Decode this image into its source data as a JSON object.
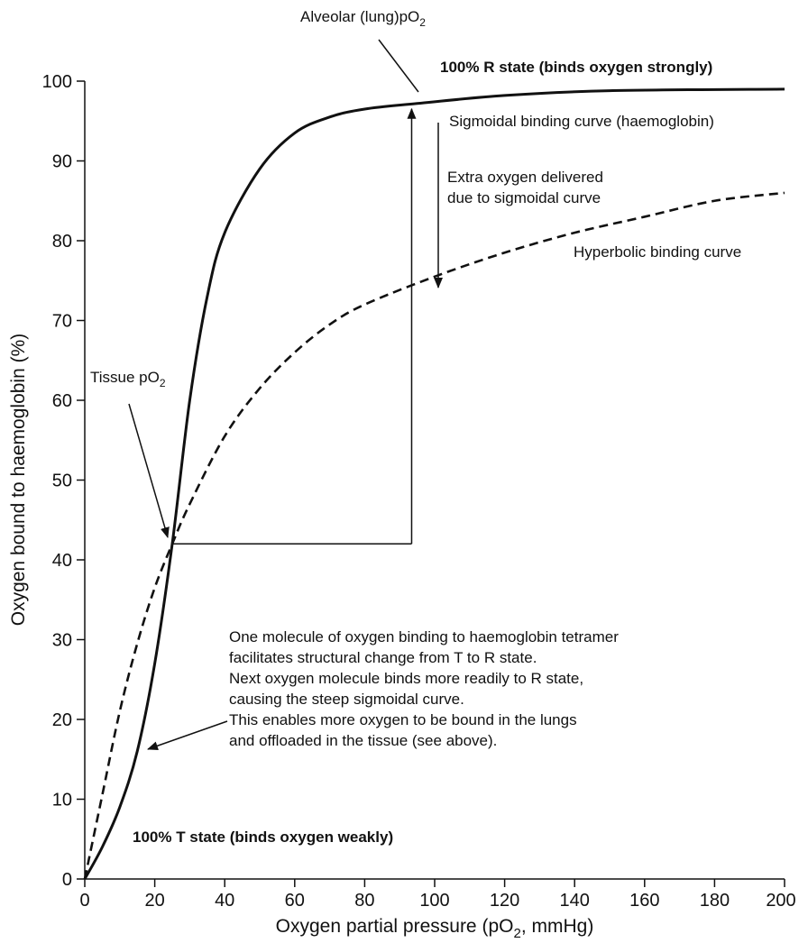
{
  "chart_data": {
    "type": "line",
    "xlabel_main": "Oxygen partial pressure (pO",
    "xlabel_sub": "2",
    "xlabel_tail": ", mmHg)",
    "ylabel": "Oxygen bound to haemoglobin (%)",
    "xlim": [
      0,
      200
    ],
    "ylim": [
      0,
      100
    ],
    "x_ticks": [
      "0",
      "20",
      "40",
      "60",
      "80",
      "100",
      "120",
      "140",
      "160",
      "180",
      "200"
    ],
    "y_ticks": [
      "0",
      "10",
      "20",
      "30",
      "40",
      "50",
      "60",
      "70",
      "80",
      "90",
      "100"
    ],
    "grid": false,
    "series": [
      {
        "name": "Sigmoidal binding curve (haemoglobin)",
        "style": "solid",
        "x": [
          0,
          5,
          10,
          15,
          20,
          25,
          30,
          35,
          40,
          50,
          60,
          70,
          80,
          95,
          120,
          150,
          200
        ],
        "y": [
          0,
          4,
          9,
          16,
          27,
          42,
          60,
          73,
          81,
          89,
          93.5,
          95.5,
          96.5,
          97.2,
          98.2,
          98.8,
          99
        ]
      },
      {
        "name": "Hyperbolic binding curve",
        "style": "dashed",
        "x": [
          0,
          5,
          10,
          15,
          20,
          25,
          30,
          40,
          50,
          60,
          70,
          80,
          100,
          120,
          140,
          160,
          180,
          200
        ],
        "y": [
          0,
          10.5,
          21,
          29.5,
          36.5,
          42,
          47,
          55.5,
          61.5,
          66,
          69.5,
          72,
          75.5,
          78.5,
          81,
          83,
          85,
          86
        ]
      }
    ],
    "annotations": {
      "alveolar_main": "Alveolar (lung)pO",
      "alveolar_sub": "2",
      "tissue_main": "Tissue pO",
      "tissue_sub": "2",
      "r_state": "100% R state (binds oxygen strongly)",
      "t_state": "100% T state (binds oxygen weakly)",
      "sigmoidal_label": "Sigmoidal binding curve (haemoglobin)",
      "extra_oxygen": [
        "Extra oxygen delivered",
        "due to sigmoidal curve"
      ],
      "hyperbolic_label": "Hyperbolic binding curve",
      "explanation": [
        "One molecule of oxygen binding to haemoglobin tetramer",
        "facilitates structural change from T to R state.",
        "Next oxygen molecule binds more readily to R state,",
        "causing the steep sigmoidal curve.",
        "This enables more oxygen to be bound in the lungs",
        "and offloaded in the tissue (see above)."
      ]
    },
    "markers": {
      "tissue_po2": 25,
      "tissue_sat": 42,
      "alveolar_po2": 96,
      "alveolar_sat": 97.2,
      "hyperbolic_at_alveolar": 74.8
    }
  },
  "colors": {
    "ink": "#111111",
    "background": "#ffffff"
  }
}
